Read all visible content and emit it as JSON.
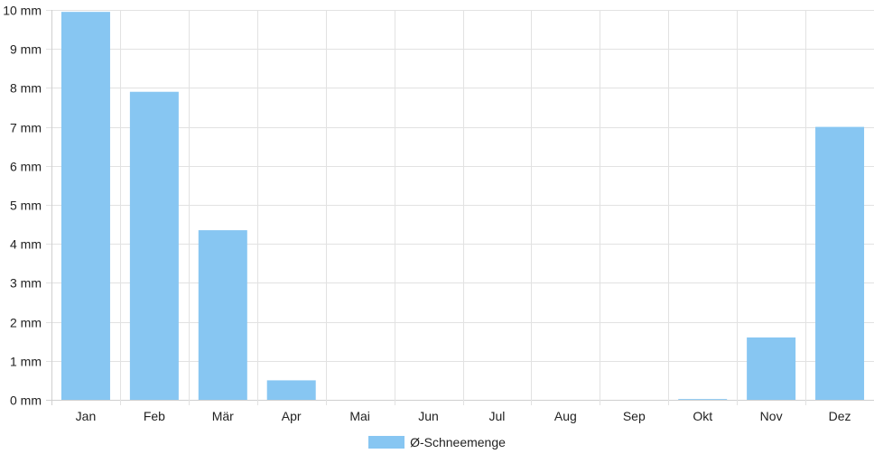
{
  "chart_data": {
    "type": "bar",
    "categories": [
      "Jan",
      "Feb",
      "Mär",
      "Apr",
      "Mai",
      "Jun",
      "Jul",
      "Aug",
      "Sep",
      "Okt",
      "Nov",
      "Dez"
    ],
    "series": [
      {
        "name": "Ø-Schneemenge",
        "values": [
          9.95,
          7.9,
          4.35,
          0.5,
          0,
          0,
          0,
          0,
          0,
          0.02,
          1.6,
          7.0
        ],
        "color": "#87c6f2"
      }
    ],
    "y_ticks": [
      0,
      1,
      2,
      3,
      4,
      5,
      6,
      7,
      8,
      9,
      10
    ],
    "y_tick_labels": [
      "0 mm",
      "1 mm",
      "2 mm",
      "3 mm",
      "4 mm",
      "5 mm",
      "6 mm",
      "7 mm",
      "8 mm",
      "9 mm",
      "10 mm"
    ],
    "ylim": [
      0,
      10
    ],
    "grid": true,
    "legend_position": "bottom",
    "colors": {
      "grid": "#e2e2e2",
      "axis": "#cfcfcf",
      "text": "#222222"
    }
  }
}
